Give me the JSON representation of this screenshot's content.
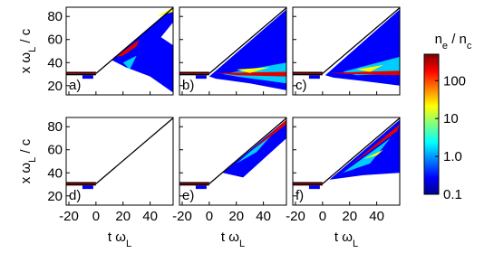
{
  "chart_data": [
    {
      "type": "heatmap",
      "label": "a)",
      "xlim": [
        -22,
        57
      ],
      "ylim": [
        12,
        88
      ],
      "xticks": [
        -20,
        0,
        20,
        40
      ],
      "yticks": [
        20,
        40,
        60,
        80
      ],
      "ylabel": [
        "x ω",
        "L",
        " / c"
      ]
    },
    {
      "type": "heatmap",
      "label": "b)",
      "xlim": [
        -22,
        57
      ],
      "ylim": [
        12,
        88
      ],
      "xticks": [
        -20,
        0,
        20,
        40
      ],
      "yticks": [
        20,
        40,
        60,
        80
      ]
    },
    {
      "type": "heatmap",
      "label": "c)",
      "xlim": [
        -22,
        57
      ],
      "ylim": [
        12,
        88
      ],
      "xticks": [
        -20,
        0,
        20,
        40
      ],
      "yticks": [
        20,
        40,
        60,
        80
      ]
    },
    {
      "type": "heatmap",
      "label": "d)",
      "xlim": [
        -22,
        57
      ],
      "ylim": [
        12,
        88
      ],
      "xticks": [
        -20,
        0,
        20,
        40
      ],
      "yticks": [
        20,
        40,
        60,
        80
      ],
      "ylabel": [
        "x ω",
        "L",
        " / c"
      ],
      "xlabel": [
        "t ω",
        "L"
      ]
    },
    {
      "type": "heatmap",
      "label": "e)",
      "xlim": [
        -22,
        57
      ],
      "ylim": [
        12,
        88
      ],
      "xticks": [
        -20,
        0,
        20,
        40
      ],
      "yticks": [
        20,
        40,
        60,
        80
      ],
      "xlabel": [
        "t ω",
        "L"
      ]
    },
    {
      "type": "heatmap",
      "label": "f)",
      "xlim": [
        -22,
        57
      ],
      "ylim": [
        12,
        88
      ],
      "xticks": [
        -20,
        0,
        20,
        40
      ],
      "yticks": [
        20,
        40,
        60,
        80
      ],
      "xlabel": [
        "t ω",
        "L"
      ]
    }
  ],
  "colorbar": {
    "label": [
      "n",
      "e",
      " / n",
      "c"
    ],
    "scale": "log",
    "lim": [
      0.1,
      500
    ],
    "ticks": [
      0.1,
      {
        "value": 1,
        "label": "1.0"
      },
      10,
      100
    ]
  }
}
